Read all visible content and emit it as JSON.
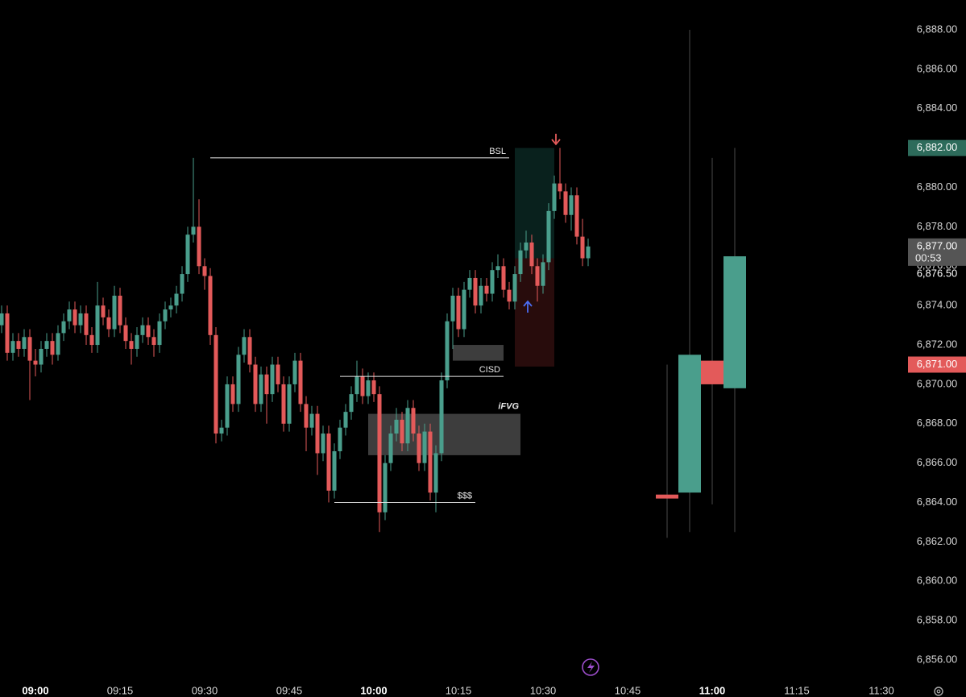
{
  "chart_data": {
    "type": "candlestick",
    "x": [
      "08:54",
      "08:55",
      "08:56",
      "08:57",
      "08:58",
      "08:59",
      "09:00",
      "09:01",
      "09:02",
      "09:03",
      "09:04",
      "09:05",
      "09:06",
      "09:07",
      "09:08",
      "09:09",
      "09:10",
      "09:11",
      "09:12",
      "09:13",
      "09:14",
      "09:15",
      "09:16",
      "09:17",
      "09:18",
      "09:19",
      "09:20",
      "09:21",
      "09:22",
      "09:23",
      "09:24",
      "09:25",
      "09:26",
      "09:27",
      "09:28",
      "09:29",
      "09:30",
      "09:31",
      "09:32",
      "09:33",
      "09:34",
      "09:35",
      "09:36",
      "09:37",
      "09:38",
      "09:39",
      "09:40",
      "09:41",
      "09:42",
      "09:43",
      "09:44",
      "09:45",
      "09:46",
      "09:47",
      "09:48",
      "09:49",
      "09:50",
      "09:51",
      "09:52",
      "09:53",
      "09:54",
      "09:55",
      "09:56",
      "09:57",
      "09:58",
      "09:59",
      "10:00",
      "10:01",
      "10:02",
      "10:03",
      "10:04",
      "10:05",
      "10:06",
      "10:07",
      "10:08",
      "10:09",
      "10:10",
      "10:11",
      "10:12",
      "10:13",
      "10:14",
      "10:15",
      "10:16",
      "10:17",
      "10:18",
      "10:19",
      "10:20",
      "10:21",
      "10:22",
      "10:23",
      "10:24",
      "10:25",
      "10:26",
      "10:27",
      "10:28",
      "10:29",
      "10:30",
      "10:31",
      "10:32",
      "10:33",
      "10:34",
      "10:35",
      "10:36",
      "10:37",
      "10:38"
    ],
    "ohlc": [
      [
        6873.0,
        6874.0,
        6872.6,
        6873.6
      ],
      [
        6873.6,
        6874.0,
        6871.2,
        6871.6
      ],
      [
        6871.6,
        6872.6,
        6871.2,
        6872.2
      ],
      [
        6872.2,
        6872.6,
        6871.4,
        6871.8
      ],
      [
        6871.8,
        6872.8,
        6871.4,
        6872.4
      ],
      [
        6872.4,
        6872.8,
        6869.2,
        6871.2
      ],
      [
        6871.2,
        6871.8,
        6870.4,
        6871.0
      ],
      [
        6871.0,
        6872.2,
        6870.6,
        6871.8
      ],
      [
        6871.8,
        6872.6,
        6871.4,
        6872.2
      ],
      [
        6872.2,
        6872.6,
        6871.0,
        6871.5
      ],
      [
        6871.5,
        6873.0,
        6871.2,
        6872.6
      ],
      [
        6872.6,
        6873.6,
        6872.2,
        6873.2
      ],
      [
        6873.2,
        6874.2,
        6872.8,
        6873.8
      ],
      [
        6873.8,
        6874.2,
        6872.6,
        6873.0
      ],
      [
        6873.0,
        6874.0,
        6872.6,
        6873.6
      ],
      [
        6873.6,
        6874.0,
        6872.0,
        6872.5
      ],
      [
        6872.5,
        6872.9,
        6871.6,
        6872.0
      ],
      [
        6872.0,
        6875.2,
        6871.6,
        6874.0
      ],
      [
        6874.0,
        6874.4,
        6873.0,
        6873.4
      ],
      [
        6873.4,
        6873.8,
        6872.4,
        6872.8
      ],
      [
        6872.8,
        6875.0,
        6872.4,
        6874.5
      ],
      [
        6874.5,
        6874.9,
        6872.6,
        6873.0
      ],
      [
        6873.0,
        6873.4,
        6871.8,
        6872.2
      ],
      [
        6872.2,
        6872.6,
        6871.0,
        6871.8
      ],
      [
        6871.8,
        6872.9,
        6871.4,
        6872.5
      ],
      [
        6872.5,
        6873.4,
        6872.1,
        6873.0
      ],
      [
        6873.0,
        6873.4,
        6872.0,
        6872.4
      ],
      [
        6872.4,
        6872.8,
        6871.4,
        6872.0
      ],
      [
        6872.0,
        6873.6,
        6871.6,
        6873.2
      ],
      [
        6873.2,
        6874.2,
        6872.8,
        6873.8
      ],
      [
        6873.8,
        6874.4,
        6873.4,
        6874.0
      ],
      [
        6874.0,
        6875.0,
        6873.6,
        6874.6
      ],
      [
        6874.6,
        6876.0,
        6874.2,
        6875.6
      ],
      [
        6875.6,
        6878.0,
        6875.2,
        6877.6
      ],
      [
        6877.6,
        6881.5,
        6877.2,
        6878.0
      ],
      [
        6878.0,
        6879.4,
        6875.6,
        6876.0
      ],
      [
        6876.0,
        6876.4,
        6874.8,
        6875.5
      ],
      [
        6875.5,
        6875.9,
        6872.0,
        6872.5
      ],
      [
        6872.5,
        6872.9,
        6867.0,
        6867.5
      ],
      [
        6867.5,
        6868.2,
        6867.1,
        6867.8
      ],
      [
        6867.8,
        6870.4,
        6867.4,
        6870.0
      ],
      [
        6870.0,
        6870.4,
        6868.6,
        6869.0
      ],
      [
        6869.0,
        6871.9,
        6868.6,
        6871.5
      ],
      [
        6871.5,
        6872.8,
        6871.1,
        6872.4
      ],
      [
        6872.4,
        6872.8,
        6870.6,
        6871.0
      ],
      [
        6871.0,
        6871.4,
        6868.6,
        6869.0
      ],
      [
        6869.0,
        6870.9,
        6868.6,
        6870.5
      ],
      [
        6870.5,
        6870.9,
        6868.0,
        6869.5
      ],
      [
        6869.5,
        6871.4,
        6869.1,
        6871.0
      ],
      [
        6871.0,
        6871.4,
        6869.6,
        6870.0
      ],
      [
        6870.0,
        6870.4,
        6867.6,
        6868.0
      ],
      [
        6868.0,
        6870.4,
        6867.6,
        6870.0
      ],
      [
        6870.0,
        6871.6,
        6869.6,
        6871.2
      ],
      [
        6871.2,
        6871.6,
        6868.6,
        6869.0
      ],
      [
        6869.0,
        6869.4,
        6866.6,
        6867.8
      ],
      [
        6867.8,
        6868.9,
        6867.4,
        6868.5
      ],
      [
        6868.5,
        6868.9,
        6865.4,
        6866.5
      ],
      [
        6866.5,
        6867.9,
        6866.1,
        6867.5
      ],
      [
        6867.5,
        6867.9,
        6864.0,
        6864.6
      ],
      [
        6864.6,
        6867.0,
        6864.2,
        6866.6
      ],
      [
        6866.6,
        6868.2,
        6866.2,
        6867.8
      ],
      [
        6867.8,
        6869.0,
        6867.4,
        6868.6
      ],
      [
        6868.6,
        6869.9,
        6868.2,
        6869.5
      ],
      [
        6869.5,
        6871.2,
        6869.1,
        6870.4
      ],
      [
        6870.4,
        6870.8,
        6869.0,
        6869.4
      ],
      [
        6869.4,
        6870.6,
        6869.0,
        6870.2
      ],
      [
        6870.2,
        6870.6,
        6869.1,
        6869.5
      ],
      [
        6869.5,
        6869.9,
        6862.5,
        6863.5
      ],
      [
        6863.5,
        6866.4,
        6863.1,
        6866.0
      ],
      [
        6866.0,
        6867.9,
        6865.6,
        6867.5
      ],
      [
        6867.5,
        6868.8,
        6867.1,
        6868.2
      ],
      [
        6868.2,
        6868.6,
        6866.6,
        6867.0
      ],
      [
        6867.0,
        6869.2,
        6866.6,
        6868.8
      ],
      [
        6868.8,
        6869.2,
        6867.1,
        6867.5
      ],
      [
        6867.5,
        6867.9,
        6865.6,
        6866.0
      ],
      [
        6866.0,
        6868.0,
        6865.6,
        6867.6
      ],
      [
        6867.6,
        6868.0,
        6864.1,
        6864.5
      ],
      [
        6864.5,
        6866.9,
        6863.5,
        6866.5
      ],
      [
        6866.5,
        6870.6,
        6866.1,
        6870.2
      ],
      [
        6870.2,
        6873.6,
        6869.8,
        6873.2
      ],
      [
        6873.2,
        6874.9,
        6871.8,
        6874.5
      ],
      [
        6874.5,
        6874.9,
        6872.4,
        6872.8
      ],
      [
        6872.8,
        6875.2,
        6872.4,
        6874.8
      ],
      [
        6874.8,
        6875.8,
        6874.4,
        6875.4
      ],
      [
        6875.4,
        6875.8,
        6873.6,
        6874.0
      ],
      [
        6874.0,
        6875.4,
        6873.6,
        6875.0
      ],
      [
        6875.0,
        6875.4,
        6874.2,
        6874.6
      ],
      [
        6874.6,
        6876.2,
        6874.2,
        6875.8
      ],
      [
        6875.8,
        6876.6,
        6875.4,
        6876.0
      ],
      [
        6876.0,
        6876.4,
        6874.4,
        6874.8
      ],
      [
        6874.8,
        6875.2,
        6873.8,
        6874.2
      ],
      [
        6874.2,
        6876.0,
        6873.8,
        6875.6
      ],
      [
        6875.6,
        6877.2,
        6875.2,
        6876.8
      ],
      [
        6876.8,
        6877.8,
        6876.4,
        6877.2
      ],
      [
        6877.2,
        6877.6,
        6875.6,
        6876.0
      ],
      [
        6876.0,
        6876.4,
        6874.2,
        6875.0
      ],
      [
        6875.0,
        6876.6,
        6874.6,
        6876.2
      ],
      [
        6876.2,
        6879.2,
        6875.8,
        6878.8
      ],
      [
        6878.8,
        6880.6,
        6878.4,
        6880.2
      ],
      [
        6880.2,
        6882.0,
        6879.4,
        6879.8
      ],
      [
        6879.8,
        6880.2,
        6878.2,
        6878.6
      ],
      [
        6878.6,
        6880.0,
        6877.8,
        6879.6
      ],
      [
        6879.6,
        6880.0,
        6877.1,
        6877.5
      ],
      [
        6877.5,
        6878.4,
        6876.0,
        6876.4
      ],
      [
        6876.4,
        6877.4,
        6876.0,
        6877.0
      ]
    ],
    "up_color": "#4a9e8c",
    "down_color": "#e35a5a",
    "htf": {
      "x": [
        "10:52",
        "10:56",
        "11:00",
        "11:04"
      ],
      "ohlc": [
        [
          6864.4,
          6871.0,
          6862.2,
          6864.2
        ],
        [
          6864.5,
          6888.0,
          6862.5,
          6871.5
        ],
        [
          6871.2,
          6881.5,
          6863.9,
          6870.0
        ],
        [
          6869.8,
          6882.0,
          6862.5,
          6876.5
        ]
      ],
      "wick_color": "#4a4a4a"
    },
    "xlim": [
      "08:54",
      "11:34"
    ],
    "xticks": [
      "09:00",
      "09:15",
      "09:30",
      "09:45",
      "10:00",
      "10:15",
      "10:30",
      "10:45",
      "11:00",
      "11:15",
      "11:30"
    ],
    "ylim": [
      6855,
      6889
    ],
    "yticks": [
      {
        "value": 6856,
        "label": "6,856.00"
      },
      {
        "value": 6858,
        "label": "6,858.00"
      },
      {
        "value": 6860,
        "label": "6,860.00"
      },
      {
        "value": 6862,
        "label": "6,862.00"
      },
      {
        "value": 6864,
        "label": "6,864.00"
      },
      {
        "value": 6866,
        "label": "6,866.00"
      },
      {
        "value": 6868,
        "label": "6,868.00"
      },
      {
        "value": 6870,
        "label": "6,870.00"
      },
      {
        "value": 6872,
        "label": "6,872.00"
      },
      {
        "value": 6874,
        "label": "6,874.00"
      },
      {
        "value": 6876,
        "label": "6,876.00"
      },
      {
        "value": 6878,
        "label": "6,878.00"
      },
      {
        "value": 6880,
        "label": "6,880.00"
      },
      {
        "value": 6882,
        "label": "6,882.00"
      },
      {
        "value": 6884,
        "label": "6,884.00"
      },
      {
        "value": 6886,
        "label": "6,886.00"
      },
      {
        "value": 6888,
        "label": "6,888.00"
      }
    ],
    "levels": [
      {
        "label": "BSL",
        "value": 6881.5,
        "x": [
          "09:31",
          "10:24"
        ]
      },
      {
        "label": "CISD",
        "value": 6870.4,
        "x": [
          "09:54",
          "10:23"
        ]
      },
      {
        "label": "$$$",
        "value": 6864.0,
        "x": [
          "09:53",
          "10:18"
        ]
      }
    ],
    "zones": [
      {
        "label": "iFVG",
        "x": [
          "09:59",
          "10:26"
        ],
        "y": [
          6866.4,
          6868.5
        ]
      },
      {
        "x": [
          "10:14",
          "10:23"
        ],
        "y": [
          6871.2,
          6872.0
        ]
      }
    ],
    "position": {
      "x": [
        "10:25",
        "10:32"
      ],
      "target": 6882.0,
      "entry": 6876.4,
      "stop": 6870.9
    },
    "price_labels": [
      {
        "value": 6882.0,
        "label": "6,882.00",
        "color": "#2d6b5b"
      },
      {
        "value": 6877.0,
        "label": "6,877.00",
        "color": "#555555",
        "countdown": "00:53"
      },
      {
        "value": 6876.5,
        "label": "6,876.50"
      },
      {
        "value": 6871.0,
        "label": "6,871.00",
        "color": "#e35a5a"
      }
    ]
  }
}
